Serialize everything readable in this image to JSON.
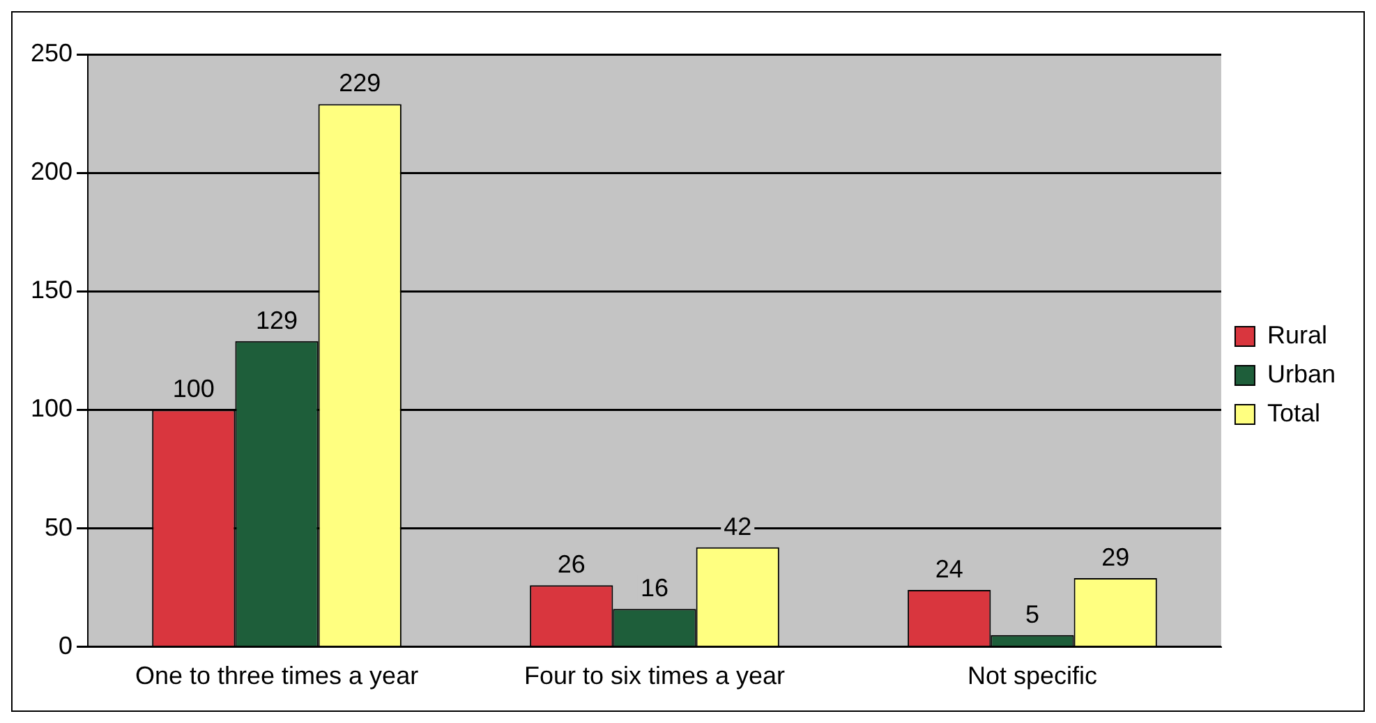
{
  "chart_data": {
    "type": "bar",
    "categories": [
      "One to three times a year",
      "Four to six times a year",
      "Not specific"
    ],
    "series": [
      {
        "name": "Rural",
        "color": "#d9363e",
        "values": [
          100,
          26,
          24
        ]
      },
      {
        "name": "Urban",
        "color": "#1e5e3a",
        "values": [
          129,
          16,
          5
        ]
      },
      {
        "name": "Total",
        "color": "#ffff80",
        "values": [
          229,
          42,
          29
        ]
      }
    ],
    "ylim": [
      0,
      250
    ],
    "yticks": [
      0,
      50,
      100,
      150,
      200,
      250
    ],
    "grid": "y",
    "legend": "right",
    "data_labels": true
  }
}
